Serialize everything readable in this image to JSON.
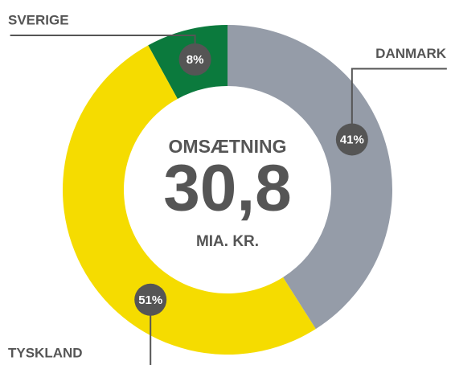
{
  "chart_data": {
    "type": "pie",
    "donut": true,
    "categories": [
      "DANMARK",
      "TYSKLAND",
      "SVERIGE"
    ],
    "values": [
      41,
      51,
      8
    ],
    "value_labels": [
      "41%",
      "51%",
      "8%"
    ],
    "colors": [
      "#959ca8",
      "#f5dc00",
      "#0b7a3d"
    ],
    "center_title": "OMSÆTNING",
    "center_value": "30,8",
    "center_unit": "MIA. KR."
  }
}
